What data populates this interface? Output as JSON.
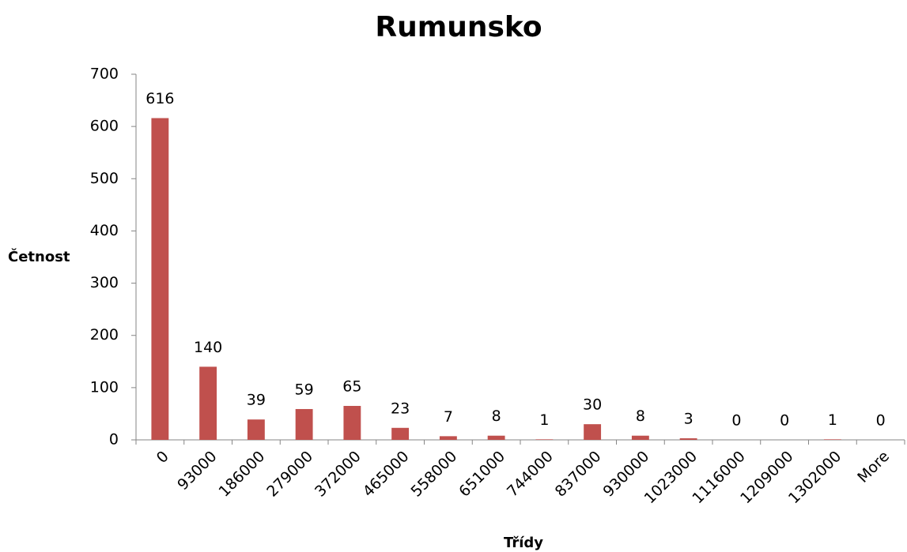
{
  "chart_data": {
    "type": "bar",
    "title": "Rumunsko",
    "x_label": "Třídy",
    "y_label": "Četnost",
    "categories": [
      "0",
      "93000",
      "186000",
      "279000",
      "372000",
      "465000",
      "558000",
      "651000",
      "744000",
      "837000",
      "930000",
      "1023000",
      "1116000",
      "1209000",
      "1302000",
      "More"
    ],
    "values": [
      616,
      140,
      39,
      59,
      65,
      23,
      7,
      8,
      1,
      30,
      8,
      3,
      0,
      0,
      1,
      0
    ],
    "color": "#c0504d",
    "ylim": [
      0,
      700
    ],
    "yticks": [
      0,
      100,
      200,
      300,
      400,
      500,
      600,
      700
    ],
    "grid": false
  }
}
